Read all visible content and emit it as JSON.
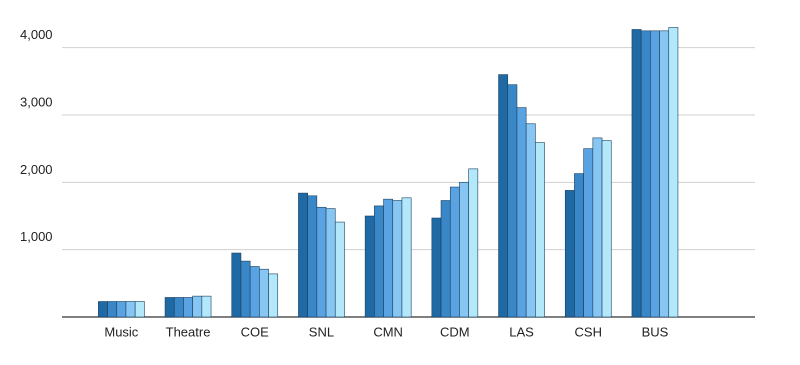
{
  "chart_data": {
    "type": "bar",
    "categories": [
      "Music",
      "Theatre",
      "COE",
      "SNL",
      "CMN",
      "CDM",
      "LAS",
      "CSH",
      "BUS",
      null
    ],
    "series": [
      {
        "color": "#1f6aa5",
        "values": [
          230,
          290,
          950,
          1840,
          1500,
          1470,
          3600,
          1880,
          4270,
          null
        ]
      },
      {
        "color": "#3a87c8",
        "values": [
          230,
          290,
          830,
          1800,
          1650,
          1730,
          3450,
          2130,
          4250,
          null
        ]
      },
      {
        "color": "#5aa3e3",
        "values": [
          230,
          290,
          750,
          1630,
          1750,
          1930,
          3110,
          2500,
          4250,
          null
        ]
      },
      {
        "color": "#87c6f2",
        "values": [
          230,
          310,
          710,
          1610,
          1730,
          2000,
          2870,
          2660,
          4250,
          null
        ]
      },
      {
        "color": "#b3e8fb",
        "values": [
          230,
          310,
          640,
          1410,
          1770,
          2200,
          2590,
          2620,
          4300,
          null
        ]
      }
    ],
    "ylim": [
      0,
      4500
    ],
    "yticks": [
      {
        "value": 1000,
        "label": "1,000"
      },
      {
        "value": 2000,
        "label": "2,000"
      },
      {
        "value": 3000,
        "label": "3,000"
      },
      {
        "value": 4000,
        "label": "4,000"
      }
    ],
    "grid": true
  }
}
